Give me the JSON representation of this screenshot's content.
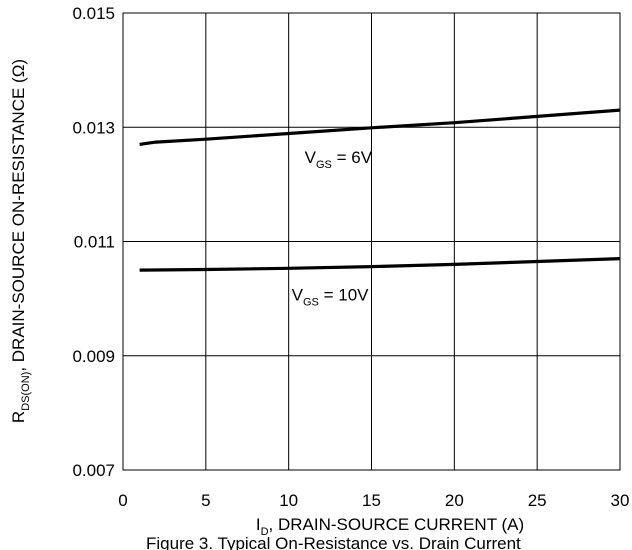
{
  "chart_data": {
    "type": "line",
    "xlabel": {
      "main": "I",
      "sub": "D",
      "rest": ", DRAIN-SOURCE CURRENT (A)"
    },
    "ylabel": {
      "main": "R",
      "sub": "DS(ON)",
      "rest": ", DRAIN-SOURCE ON-RESISTANCE (Ω)"
    },
    "xlim": [
      0,
      30
    ],
    "ylim": [
      0.007,
      0.015
    ],
    "x_ticks": [
      "0",
      "5",
      "10",
      "15",
      "20",
      "25",
      "30"
    ],
    "y_ticks": [
      "0.007",
      "0.009",
      "0.011",
      "0.013",
      "0.015"
    ],
    "grid": true,
    "series": [
      {
        "name": "V_GS = 6V",
        "x": [
          1,
          1.5,
          2,
          5,
          10,
          15,
          20,
          25,
          30
        ],
        "y": [
          0.0127,
          0.01272,
          0.01274,
          0.01279,
          0.01289,
          0.01299,
          0.01308,
          0.01319,
          0.0133
        ]
      },
      {
        "name": "V_GS = 10V",
        "x": [
          1,
          5,
          10,
          15,
          20,
          25,
          30
        ],
        "y": [
          0.0105,
          0.01051,
          0.01053,
          0.01056,
          0.0106,
          0.01065,
          0.0107
        ]
      }
    ],
    "annotations": [
      {
        "main": "V",
        "sub": "GS",
        "rest": " = 6V",
        "x": 13.0,
        "y": 0.01237
      },
      {
        "main": "V",
        "sub": "GS",
        "rest": " = 10V",
        "x": 12.5,
        "y": 0.00997
      }
    ],
    "caption": "Figure 3. Typical On-Resistance vs. Drain Current"
  }
}
